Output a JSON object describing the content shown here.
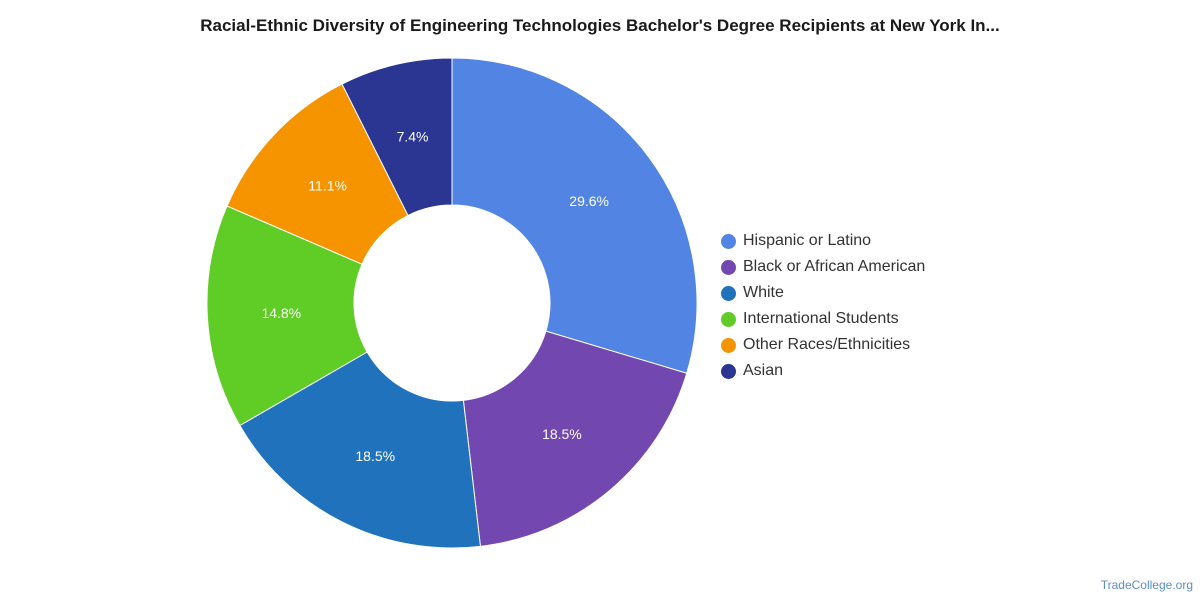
{
  "chart_data": {
    "type": "pie",
    "title": "Racial-Ethnic Diversity of Engineering Technologies Bachelor's Degree Recipients at New York In...",
    "donut": true,
    "legend_position": "right",
    "categories": [
      "Hispanic or Latino",
      "Black or African American",
      "White",
      "International Students",
      "Other Races/Ethnicities",
      "Asian"
    ],
    "values": [
      29.6,
      18.5,
      18.5,
      14.8,
      11.1,
      7.4
    ],
    "labels": [
      "29.6%",
      "18.5%",
      "18.5%",
      "14.8%",
      "11.1%",
      "7.4%"
    ],
    "colors": [
      "#5285e3",
      "#7347b0",
      "#1f72bb",
      "#5fcd25",
      "#f69400",
      "#2a3691"
    ]
  },
  "footer": {
    "credit": "TradeCollege.org"
  }
}
